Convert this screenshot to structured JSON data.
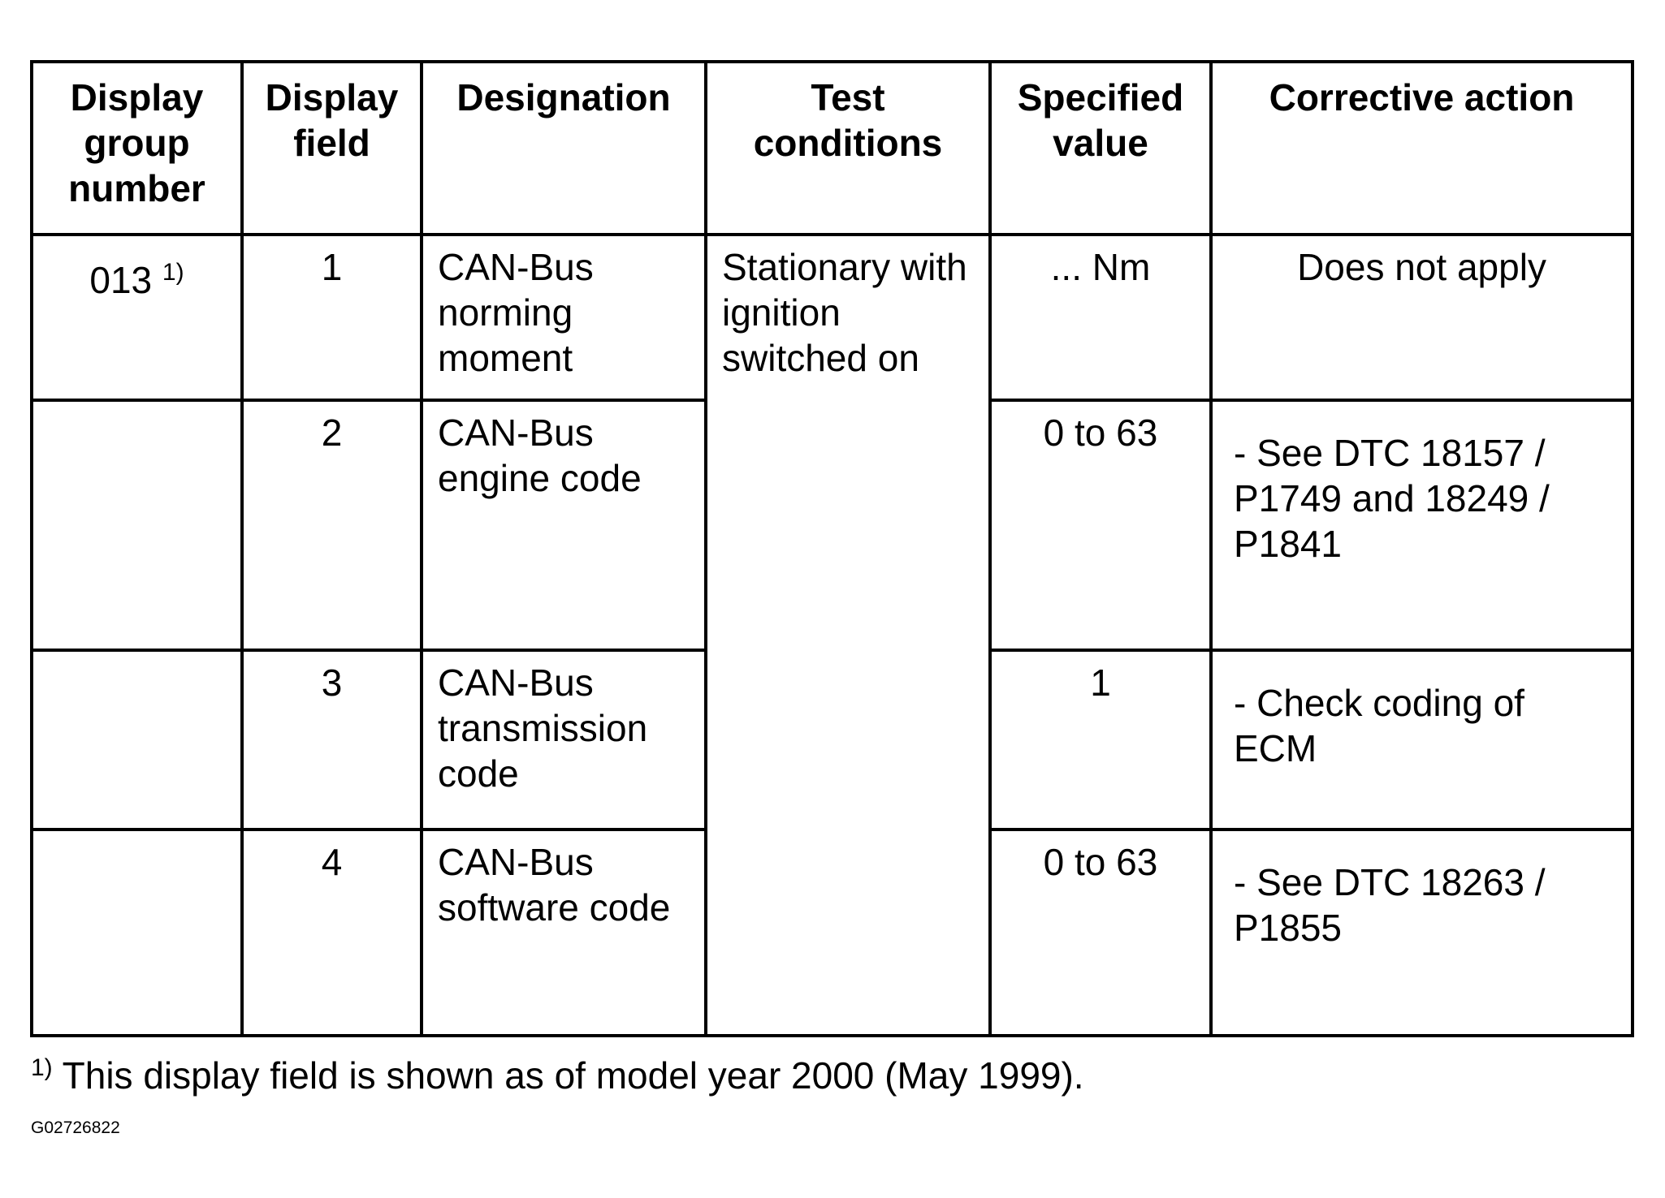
{
  "table": {
    "headers": [
      "Display group number",
      "Display field",
      "Designation",
      "Test conditions",
      "Specified value",
      "Corrective action"
    ],
    "rows": [
      {
        "group": "013",
        "group_note": "1)",
        "field": "1",
        "designation": "CAN-Bus norming moment",
        "specified": "... Nm",
        "action": "Does not apply"
      },
      {
        "field": "2",
        "designation": "CAN-Bus engine code",
        "specified": "0 to 63",
        "action": "- See DTC 18157 / P1749 and 18249 / P1841"
      },
      {
        "field": "3",
        "designation": "CAN-Bus transmission code",
        "specified": "1",
        "action": "- Check coding of ECM"
      },
      {
        "field": "4",
        "designation": "CAN-Bus software code",
        "specified": "0 to 63",
        "action": "- See DTC 18263 / P1855"
      }
    ],
    "test_conditions": "Stationary with ignition switched on"
  },
  "footnote": {
    "marker": "1)",
    "text": "This display field is shown as of model year 2000 (May 1999)."
  },
  "figure_id": "G02726822"
}
